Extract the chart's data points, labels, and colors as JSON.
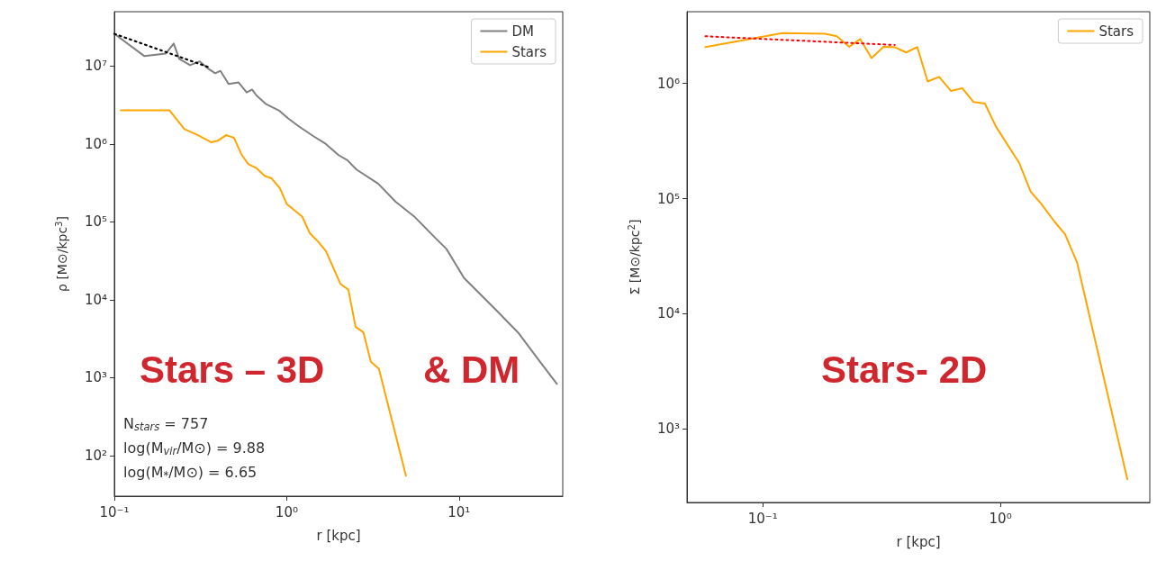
{
  "chart_data": [
    {
      "type": "line",
      "xlabel": "r [kpc]",
      "ylabel": "ρ [M⊙/kpc$^{3}$]",
      "log": "xy",
      "xlim": [
        0.1,
        40
      ],
      "ylim": [
        30,
        50000000
      ],
      "xticks": [
        {
          "value": 0.1,
          "label": "10⁻¹"
        },
        {
          "value": 1,
          "label": "10⁰"
        },
        {
          "value": 10,
          "label": "10¹"
        }
      ],
      "yticks": [
        {
          "value": 100,
          "label": "10²"
        },
        {
          "value": 1000,
          "label": "10³"
        },
        {
          "value": 10000,
          "label": "10⁴"
        },
        {
          "value": 100000,
          "label": "10⁵"
        },
        {
          "value": 1000000,
          "label": "10⁶"
        },
        {
          "value": 10000000,
          "label": "10⁷"
        }
      ],
      "legend": "top right",
      "series": [
        {
          "name": "DM",
          "color": "#808080",
          "x": [
            0.1,
            0.149,
            0.199,
            0.221,
            0.238,
            0.275,
            0.313,
            0.345,
            0.385,
            0.413,
            0.46,
            0.525,
            0.586,
            0.63,
            0.668,
            0.76,
            0.9,
            1.02,
            1.17,
            1.43,
            1.69,
            2.0,
            2.25,
            2.54,
            3.39,
            4.3,
            5.48,
            7.3,
            8.45,
            10.7,
            16.6,
            22,
            29.5,
            37
          ],
          "values": [
            26000000,
            13500000,
            14500000,
            19500000,
            12400000,
            10300000,
            11500000,
            9500000,
            8100000,
            8700000,
            5900000,
            6200000,
            4600000,
            5000000,
            4200000,
            3250000,
            2700000,
            2130000,
            1700000,
            1260000,
            1000000,
            720000,
            620000,
            470000,
            310000,
            180000,
            118000,
            62000,
            45000,
            19000,
            7200,
            3800,
            1600,
            830
          ]
        },
        {
          "name": "Stars",
          "color": "#ffa500",
          "x": [
            0.109,
            0.209,
            0.255,
            0.306,
            0.366,
            0.398,
            0.445,
            0.495,
            0.545,
            0.6,
            0.668,
            0.745,
            0.82,
            0.914,
            1.0,
            1.23,
            1.36,
            1.53,
            1.69,
            2.05,
            2.28,
            2.51,
            2.79,
            3.08,
            3.43,
            4.92
          ],
          "values": [
            2700000,
            2700000,
            1550000,
            1300000,
            1050000,
            1100000,
            1300000,
            1200000,
            740000,
            550000,
            490000,
            390000,
            360000,
            270000,
            170000,
            117000,
            72000,
            55000,
            42000,
            16000,
            13500,
            4500,
            3800,
            1600,
            1300,
            55
          ]
        },
        {
          "type": "line",
          "color": "#000000",
          "line_style": "dotted",
          "x": [
            0.1,
            0.362
          ],
          "values": [
            26000000,
            9500000
          ]
        }
      ],
      "annotations": [
        "Stars – 3D",
        "& DM",
        "N$_{stars}$ = 757",
        "log(M$_{vir}$/M⊙) = 9.88",
        "log(M$_{*}$/M⊙) = 6.65"
      ]
    },
    {
      "type": "line",
      "xlabel": "r [kpc]",
      "ylabel": "Σ [M⊙/kpc$^{2}$]",
      "log": "xy",
      "xlim": [
        0.048,
        4.25
      ],
      "ylim": [
        230,
        4200000
      ],
      "xticks": [
        {
          "value": 0.1,
          "label": "10⁻¹"
        },
        {
          "value": 1,
          "label": "10⁰"
        }
      ],
      "yticks": [
        {
          "value": 1000,
          "label": "10³"
        },
        {
          "value": 10000,
          "label": "10⁴"
        },
        {
          "value": 100000,
          "label": "10⁵"
        },
        {
          "value": 1000000,
          "label": "10⁶"
        }
      ],
      "legend": "top right",
      "series": [
        {
          "name": "Stars",
          "color": "#ffa500",
          "x": [
            0.0574,
            0.121,
            0.183,
            0.205,
            0.231,
            0.257,
            0.287,
            0.322,
            0.359,
            0.401,
            0.447,
            0.494,
            0.552,
            0.62,
            0.691,
            0.771,
            0.86,
            0.959,
            1.2,
            1.34,
            1.48,
            1.69,
            1.87,
            2.1,
            3.42
          ],
          "values": [
            2070000,
            2740000,
            2700000,
            2570000,
            2080000,
            2430000,
            1660000,
            2080000,
            2070000,
            1860000,
            2070000,
            1040000,
            1140000,
            860000,
            910000,
            690000,
            670000,
            420000,
            204000,
            115000,
            91000,
            63000,
            49000,
            28000,
            365
          ]
        },
        {
          "type": "line",
          "color": "#ff0000",
          "line_style": "dotted",
          "x": [
            0.0574,
            0.359
          ],
          "values": [
            2570000,
            2160000
          ]
        }
      ],
      "annotations": [
        "Stars- 2D"
      ]
    }
  ]
}
